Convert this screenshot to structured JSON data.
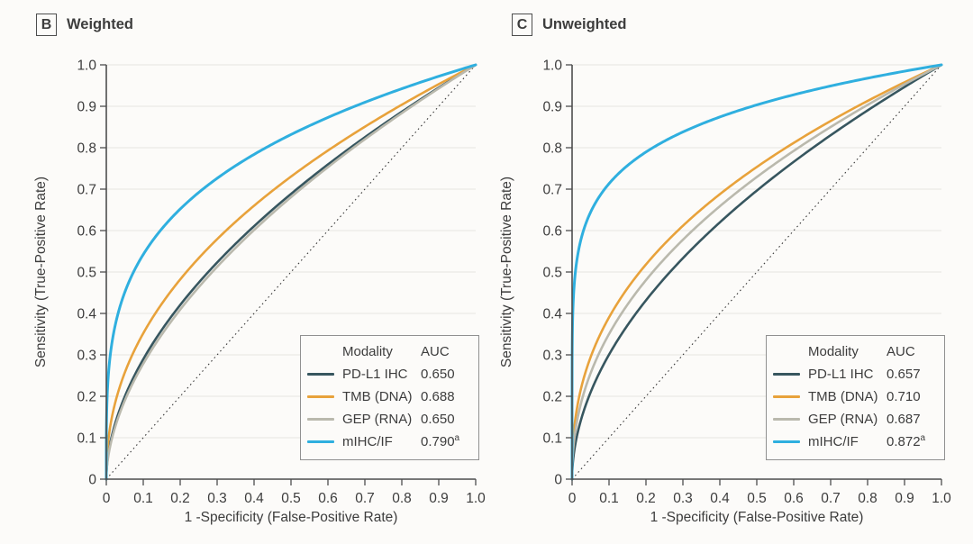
{
  "figure": {
    "background": "#fcfbf9",
    "text_color": "#3d3d3d",
    "axis_color": "#4d4d4d",
    "grid_color": "#e6e5e1",
    "diagonal_color": "#3a3a3a",
    "legend_border_color": "#909090"
  },
  "chart_data": [
    {
      "type": "line",
      "subtype": "roc-curve",
      "panel_letter": "B",
      "title": "Weighted",
      "xlabel": "1 -Specificity (False-Positive Rate)",
      "ylabel": "Sensitivity (True-Positive Rate)",
      "xlim": [
        0,
        1
      ],
      "ylim": [
        0,
        1
      ],
      "xticks": [
        "0",
        "0.1",
        "0.2",
        "0.3",
        "0.4",
        "0.5",
        "0.6",
        "0.7",
        "0.8",
        "0.9",
        "1.0"
      ],
      "yticks": [
        "0",
        "0.1",
        "0.2",
        "0.3",
        "0.4",
        "0.5",
        "0.6",
        "0.7",
        "0.8",
        "0.9",
        "1.0"
      ],
      "grid": "horizontal-only",
      "reference_line": {
        "type": "diagonal",
        "style": "dotted",
        "from": [
          0,
          0
        ],
        "to": [
          1,
          1
        ]
      },
      "legend_position": "inside-bottom-right",
      "legend_header": {
        "modality": "Modality",
        "auc": "AUC"
      },
      "curve_model": "y = x^((1-AUC)/AUC), curves from (0,0) to (1,1)",
      "series": [
        {
          "name": "PD-L1 IHC",
          "auc": 0.65,
          "auc_display": "0.650",
          "footnote": "",
          "color": "#37565f"
        },
        {
          "name": "TMB (DNA)",
          "auc": 0.688,
          "auc_display": "0.688",
          "footnote": "",
          "color": "#e8a23b"
        },
        {
          "name": "GEP (RNA)",
          "auc": 0.65,
          "auc_display": "0.650",
          "footnote": "",
          "color": "#bab9ad"
        },
        {
          "name": "mIHC/IF",
          "auc": 0.79,
          "auc_display": "0.790",
          "footnote": "a",
          "color": "#2fafdf"
        }
      ]
    },
    {
      "type": "line",
      "subtype": "roc-curve",
      "panel_letter": "C",
      "title": "Unweighted",
      "xlabel": "1 -Specificity (False-Positive Rate)",
      "ylabel": "Sensitivity (True-Positive Rate)",
      "xlim": [
        0,
        1
      ],
      "ylim": [
        0,
        1
      ],
      "xticks": [
        "0",
        "0.1",
        "0.2",
        "0.3",
        "0.4",
        "0.5",
        "0.6",
        "0.7",
        "0.8",
        "0.9",
        "1.0"
      ],
      "yticks": [
        "0",
        "0.1",
        "0.2",
        "0.3",
        "0.4",
        "0.5",
        "0.6",
        "0.7",
        "0.8",
        "0.9",
        "1.0"
      ],
      "grid": "horizontal-only",
      "reference_line": {
        "type": "diagonal",
        "style": "dotted",
        "from": [
          0,
          0
        ],
        "to": [
          1,
          1
        ]
      },
      "legend_position": "inside-bottom-right",
      "legend_header": {
        "modality": "Modality",
        "auc": "AUC"
      },
      "curve_model": "y = x^((1-AUC)/AUC), curves from (0,0) to (1,1)",
      "series": [
        {
          "name": "PD-L1 IHC",
          "auc": 0.657,
          "auc_display": "0.657",
          "footnote": "",
          "color": "#37565f"
        },
        {
          "name": "TMB (DNA)",
          "auc": 0.71,
          "auc_display": "0.710",
          "footnote": "",
          "color": "#e8a23b"
        },
        {
          "name": "GEP (RNA)",
          "auc": 0.687,
          "auc_display": "0.687",
          "footnote": "",
          "color": "#bab9ad"
        },
        {
          "name": "mIHC/IF",
          "auc": 0.872,
          "auc_display": "0.872",
          "footnote": "a",
          "color": "#2fafdf"
        }
      ]
    }
  ]
}
